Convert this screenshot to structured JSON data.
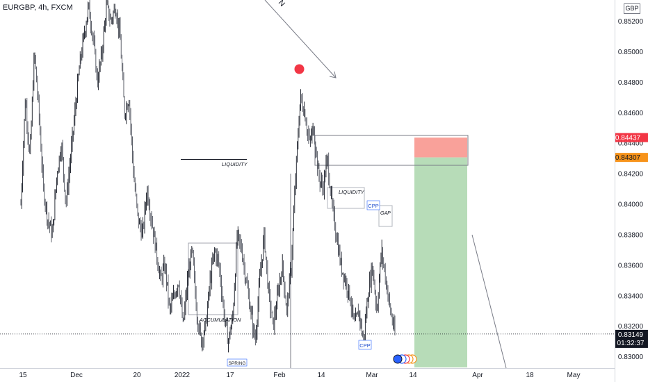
{
  "header": {
    "symbol": "EURGBP, 4h, FXCM",
    "currency": "GBP"
  },
  "chart_data": {
    "type": "candlestick",
    "symbol": "EURGBP",
    "interval": "4h",
    "source": "FXCM",
    "ylim": [
      0.8293,
      0.8533
    ],
    "price_axis": [
      {
        "value": 0.852,
        "label": "0.85200"
      },
      {
        "value": 0.85,
        "label": "0.85000"
      },
      {
        "value": 0.848,
        "label": "0.84800"
      },
      {
        "value": 0.846,
        "label": "0.84600"
      },
      {
        "value": 0.844,
        "label": "0.84400"
      },
      {
        "value": 0.842,
        "label": "0.84200"
      },
      {
        "value": 0.84,
        "label": "0.84000"
      },
      {
        "value": 0.838,
        "label": "0.83800"
      },
      {
        "value": 0.836,
        "label": "0.83600"
      },
      {
        "value": 0.834,
        "label": "0.83400"
      },
      {
        "value": 0.832,
        "label": "0.83200"
      },
      {
        "value": 0.83,
        "label": "0.83000"
      }
    ],
    "time_axis": [
      "15",
      "Dec",
      "20",
      "2022",
      "17",
      "Feb",
      "14",
      "Mar",
      "14",
      "Apr",
      "18",
      "May"
    ],
    "price_path": [
      [
        0.84,
        0.847,
        0.843,
        0.85,
        0.846,
        0.841,
        0.839,
        0.838,
        0.842,
        0.844,
        0.84,
        0.843
      ],
      [
        0.846,
        0.849,
        0.851,
        0.853,
        0.851,
        0.848,
        0.85,
        0.853,
        0.852,
        0.853,
        0.851,
        0.846
      ],
      [
        0.847,
        0.842,
        0.839,
        0.838,
        0.841,
        0.839,
        0.837,
        0.835,
        0.836,
        0.833,
        0.834,
        0.835
      ],
      [
        0.832,
        0.835,
        0.837,
        0.833,
        0.831,
        0.832,
        0.835,
        0.837,
        0.836,
        0.833,
        0.831,
        0.8325
      ],
      [
        0.838,
        0.837,
        0.835,
        0.833,
        0.831,
        0.835,
        0.838,
        0.834,
        0.832,
        0.834,
        0.836,
        0.833
      ],
      [
        0.836,
        0.842,
        0.847,
        0.846,
        0.844,
        0.845,
        0.842,
        0.841,
        0.843,
        0.84,
        0.838,
        0.836
      ],
      [
        0.835,
        0.834,
        0.832,
        0.833,
        0.831,
        0.834,
        0.836,
        0.833,
        0.837,
        0.835,
        0.833,
        0.8315
      ]
    ],
    "current_price": {
      "value": 0.83149,
      "label": "0.83149",
      "countdown": "01:32:37",
      "color": "#131722"
    },
    "position": {
      "stop_loss": {
        "value": 0.84437,
        "label": "0.84437",
        "color": "#f23645"
      },
      "entry": {
        "value": 0.84307,
        "label": "0.84307",
        "color": "#f7931a"
      },
      "take_profit": 0.8293,
      "start": "14",
      "loss_zone_color": "#f9a19a",
      "profit_zone_color": "#b7dcb8"
    },
    "annotations": [
      {
        "text": "LIQUIDITY"
      },
      {
        "text": "ACCUMULATION"
      },
      {
        "text": "SPRING"
      },
      {
        "text": "LIQUIDITY"
      },
      {
        "text": "CPP"
      },
      {
        "text": "GAP"
      },
      {
        "text": "CPP"
      },
      {
        "text": "N"
      }
    ],
    "colors": {
      "candle": "#131722",
      "accent_marker": "#f23645",
      "axis_text": "#131722"
    }
  }
}
